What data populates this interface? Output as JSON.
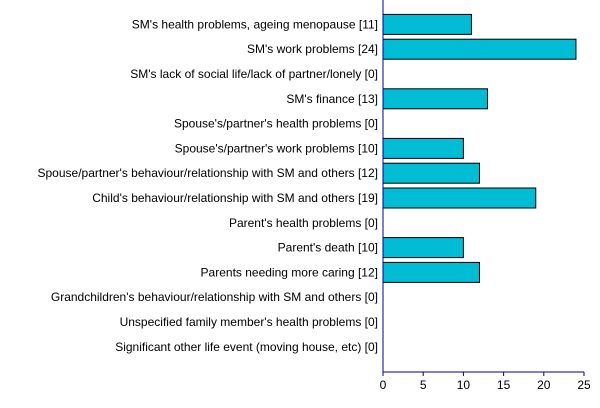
{
  "chart_data": {
    "type": "bar",
    "orientation": "horizontal",
    "title": "",
    "xlabel": "",
    "ylabel": "",
    "categories": [
      "SM's health problems, ageing menopause [11]",
      "SM's work problems [24]",
      "SM's lack of social life/lack of partner/lonely [0]",
      "SM's finance [13]",
      "Spouse's/partner's health problems [0]",
      "Spouse's/partner's work problems [10]",
      "Spouse/partner's behaviour/relationship with SM and others [12]",
      "Child's behaviour/relationship with SM and others [19]",
      "Parent's health problems [0]",
      "Parent's death [10]",
      "Parents needing more caring [12]",
      "Grandchildren's behaviour/relationship with SM and others [0]",
      "Unspecified family member's health problems [0]",
      "Significant other life event (moving house, etc) [0]"
    ],
    "values": [
      11,
      24,
      0,
      13,
      0,
      10,
      12,
      19,
      0,
      10,
      12,
      0,
      0,
      0
    ],
    "xlim": [
      0,
      25
    ],
    "xticks": [
      0,
      5,
      10,
      15,
      20,
      25
    ],
    "grid": false,
    "legend": "none",
    "colors": {
      "bar_fill": "#00BCD4",
      "bar_stroke": "#000000",
      "axis": "#00008B"
    }
  }
}
